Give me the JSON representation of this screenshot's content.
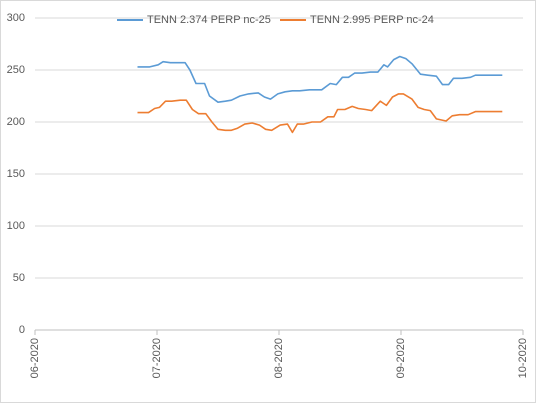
{
  "chart_data": {
    "type": "line",
    "series": [
      {
        "name": "TENN 2.374 PERP nc-25",
        "color": "#5b9bd5",
        "x": [
          6.84,
          6.94,
          7.01,
          7.05,
          7.11,
          7.17,
          7.23,
          7.27,
          7.32,
          7.39,
          7.43,
          7.5,
          7.56,
          7.61,
          7.68,
          7.75,
          7.83,
          7.88,
          7.93,
          7.99,
          8.05,
          8.11,
          8.17,
          8.25,
          8.35,
          8.42,
          8.47,
          8.52,
          8.57,
          8.62,
          8.68,
          8.75,
          8.81,
          8.86,
          8.89,
          8.94,
          8.99,
          9.04,
          9.09,
          9.16,
          9.22,
          9.29,
          9.34,
          9.39,
          9.43,
          9.5,
          9.57,
          9.61,
          9.83
        ],
        "values": [
          253,
          253,
          255,
          258,
          257,
          257,
          257,
          250,
          237,
          237,
          225,
          219,
          220,
          221,
          225,
          227,
          228,
          224,
          222,
          227,
          229,
          230,
          230,
          231,
          231,
          237,
          236,
          243,
          243,
          247,
          247,
          248,
          248,
          255,
          253,
          260,
          263,
          261,
          256,
          246,
          245,
          244,
          236,
          236,
          242,
          242,
          243,
          245,
          245
        ]
      },
      {
        "name": "TENN 2.995 PERP nc-24",
        "color": "#ed7d31",
        "x": [
          6.84,
          6.93,
          6.98,
          7.02,
          7.07,
          7.12,
          7.19,
          7.24,
          7.29,
          7.34,
          7.4,
          7.45,
          7.5,
          7.56,
          7.61,
          7.66,
          7.72,
          7.78,
          7.84,
          7.89,
          7.94,
          8.01,
          8.07,
          8.11,
          8.15,
          8.2,
          8.27,
          8.34,
          8.4,
          8.45,
          8.48,
          8.54,
          8.6,
          8.65,
          8.71,
          8.76,
          8.83,
          8.88,
          8.93,
          8.98,
          9.02,
          9.09,
          9.14,
          9.19,
          9.24,
          9.29,
          9.37,
          9.42,
          9.48,
          9.55,
          9.61,
          9.83
        ],
        "values": [
          209,
          209,
          213,
          214,
          220,
          220,
          221,
          221,
          212,
          208,
          208,
          200,
          193,
          192,
          192,
          194,
          198,
          199,
          197,
          193,
          192,
          197,
          198,
          190,
          198,
          198,
          200,
          200,
          205,
          205,
          212,
          212,
          215,
          213,
          212,
          211,
          220,
          216,
          224,
          227,
          227,
          222,
          214,
          212,
          211,
          203,
          201,
          206,
          207,
          207,
          210,
          210
        ]
      }
    ],
    "xlim": [
      6,
      10
    ],
    "xticks": [
      {
        "value": 6,
        "label": "06-2020"
      },
      {
        "value": 7,
        "label": "07-2020"
      },
      {
        "value": 8,
        "label": "08-2020"
      },
      {
        "value": 9,
        "label": "09-2020"
      },
      {
        "value": 10,
        "label": "10-2020"
      }
    ],
    "ylim": [
      0,
      300
    ],
    "yticks": [
      0,
      50,
      100,
      150,
      200,
      250,
      300
    ],
    "grid": true,
    "legend": "top"
  }
}
